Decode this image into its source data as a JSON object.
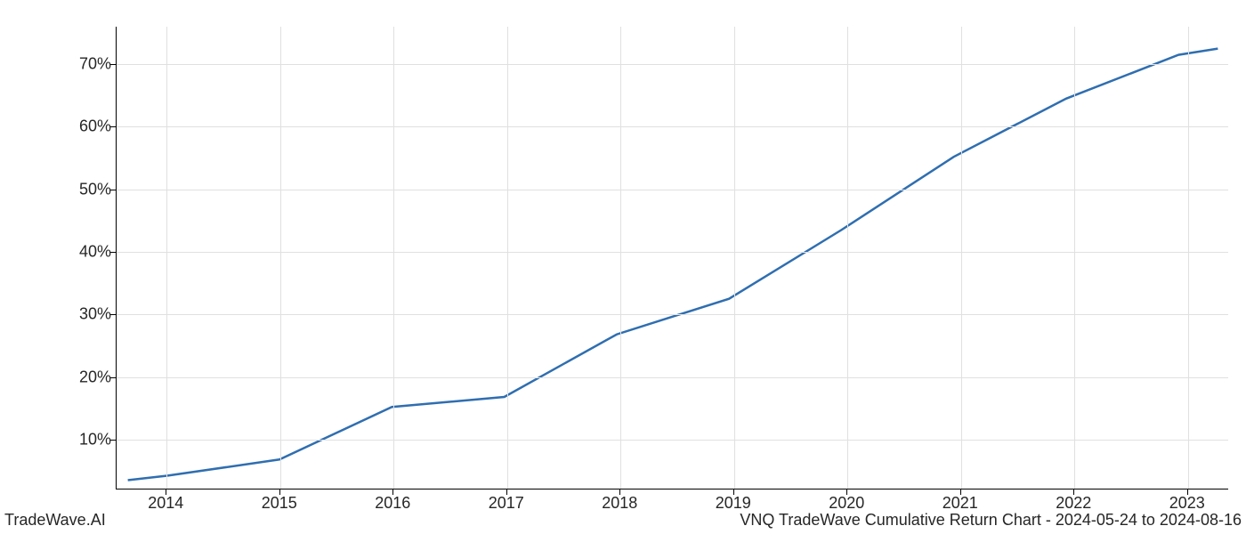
{
  "chart": {
    "type": "line",
    "background_color": "#ffffff",
    "grid_color": "#e0e0e0",
    "axis_color": "#000000",
    "line_color": "#2f6eb0",
    "line_width": 2.5,
    "font_size": 18,
    "text_color": "#262626",
    "x_labels": [
      "2014",
      "2015",
      "2016",
      "2017",
      "2018",
      "2019",
      "2020",
      "2021",
      "2022",
      "2023"
    ],
    "x_positions": [
      0.045,
      0.147,
      0.249,
      0.351,
      0.453,
      0.555,
      0.657,
      0.759,
      0.861,
      0.963
    ],
    "y_labels": [
      "10%",
      "20%",
      "30%",
      "40%",
      "50%",
      "60%",
      "70%"
    ],
    "y_values": [
      10,
      20,
      30,
      40,
      50,
      60,
      70
    ],
    "ylim": [
      2,
      76
    ],
    "data": {
      "x": [
        2013.65,
        2014,
        2015,
        2016,
        2017,
        2018,
        2019,
        2020,
        2021,
        2022,
        2023,
        2023.35
      ],
      "y": [
        3.5,
        4.2,
        6.8,
        15.2,
        16.8,
        26.8,
        32.5,
        43.5,
        55.2,
        64.5,
        71.5,
        72.5
      ]
    },
    "x_data_range": [
      2013.55,
      2023.45
    ]
  },
  "footer": {
    "left": "TradeWave.AI",
    "right": "VNQ TradeWave Cumulative Return Chart - 2024-05-24 to 2024-08-16"
  }
}
